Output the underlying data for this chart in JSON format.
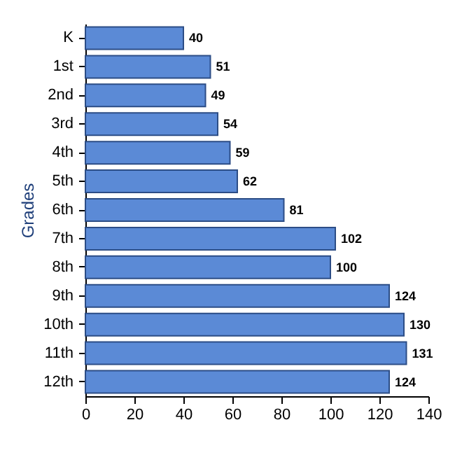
{
  "chart_data": {
    "type": "bar",
    "orientation": "horizontal",
    "ylabel": "Grades",
    "categories": [
      "K",
      "1st",
      "2nd",
      "3rd",
      "4th",
      "5th",
      "6th",
      "7th",
      "8th",
      "9th",
      "10th",
      "11th",
      "12th"
    ],
    "values": [
      40,
      51,
      49,
      54,
      59,
      62,
      81,
      102,
      100,
      124,
      130,
      131,
      124
    ],
    "color": "#5b8ad6",
    "xlim": [
      0,
      140
    ],
    "xticks": [
      0,
      20,
      40,
      60,
      80,
      100,
      120,
      140
    ],
    "data_labels": true,
    "grid": false
  }
}
